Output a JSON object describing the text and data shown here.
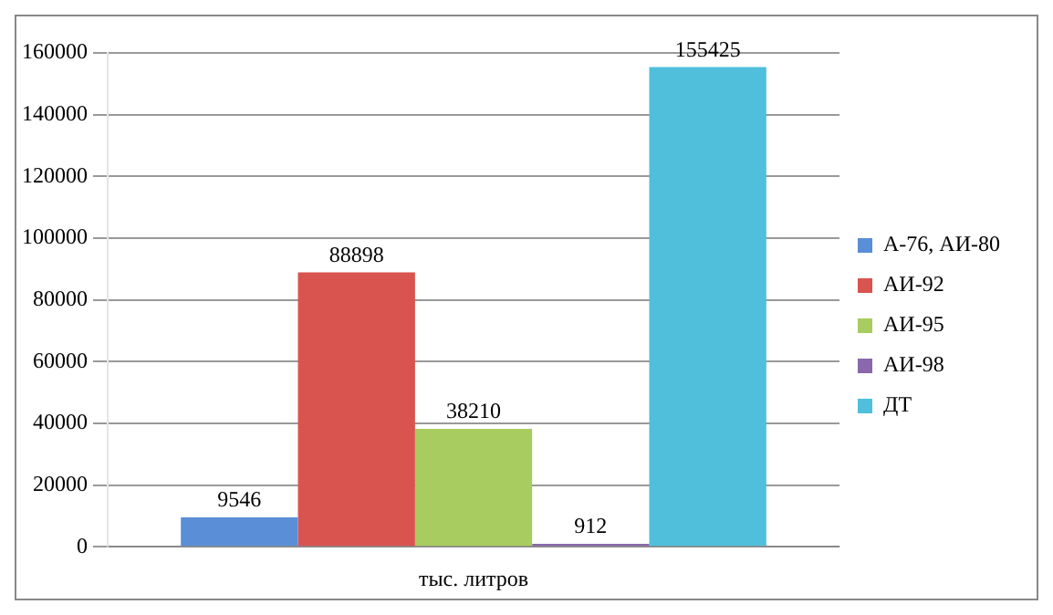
{
  "chart_data": {
    "type": "bar",
    "categories": [
      "тыс. литров"
    ],
    "series": [
      {
        "name": "А-76, АИ-80",
        "color": "#5a8ed6",
        "values": [
          9546
        ]
      },
      {
        "name": "АИ-92",
        "color": "#d9534f",
        "values": [
          88898
        ]
      },
      {
        "name": "АИ-95",
        "color": "#a8cc5f",
        "values": [
          38210
        ]
      },
      {
        "name": "АИ-98",
        "color": "#8a68ab",
        "values": [
          912
        ]
      },
      {
        "name": "ДТ",
        "color": "#4fbfdb",
        "values": [
          155425
        ]
      }
    ],
    "ylim": [
      0,
      160000
    ],
    "yticks": [
      0,
      20000,
      40000,
      60000,
      80000,
      100000,
      120000,
      140000,
      160000
    ],
    "grid": "y",
    "legend": "right",
    "data_labels": true
  }
}
